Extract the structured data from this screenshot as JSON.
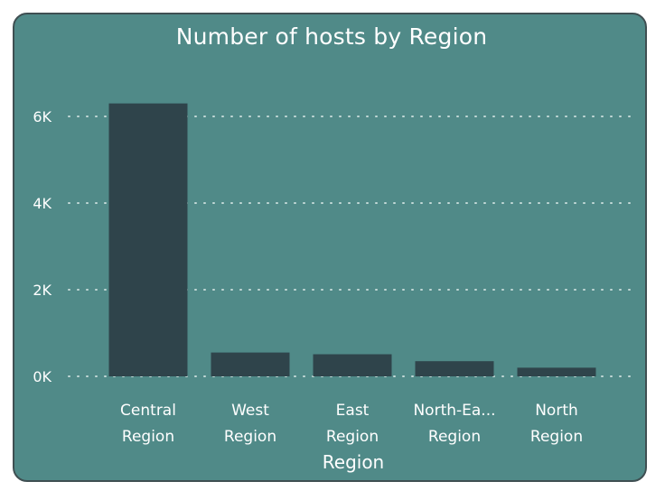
{
  "chart_data": {
    "type": "bar",
    "title": "Number of hosts by Region",
    "xlabel": "Region",
    "ylabel": "",
    "categories": [
      "Central Region",
      "West Region",
      "East Region",
      "North-Ea...",
      "North Region"
    ],
    "category_lines": [
      [
        "Central",
        "Region"
      ],
      [
        "West",
        "Region"
      ],
      [
        "East",
        "Region"
      ],
      [
        "North-Ea...",
        "Region"
      ],
      [
        "North",
        "Region"
      ]
    ],
    "values": [
      6300,
      550,
      510,
      350,
      200
    ],
    "ylim": [
      0,
      7000
    ],
    "yticks": [
      0,
      2000,
      4000,
      6000
    ],
    "ytick_labels": [
      "0K",
      "2K",
      "4K",
      "6K"
    ],
    "grid": true,
    "colors": {
      "background": "#508a88",
      "bar": "#2f444b",
      "text": "#ffffff",
      "grid": "#d6e6e4"
    }
  }
}
